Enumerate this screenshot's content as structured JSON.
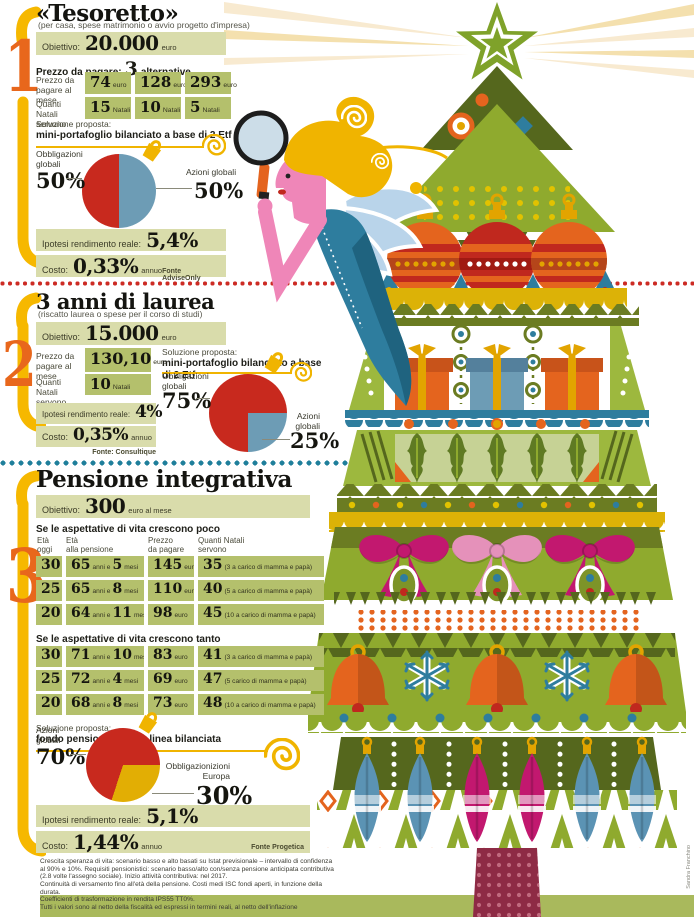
{
  "colors": {
    "cell_green": "#b4c06c",
    "bar_green": "#d9dcab",
    "accent_yellow": "#f0b400",
    "accent_orange": "#e8671c",
    "pie_red": "#c8291e",
    "pie_blue": "#6d9cb5",
    "pie_yellow": "#e2ae04",
    "dots_red": "#cc2b24",
    "dots_teal": "#1f7f9b",
    "tree_green": "#8faa2e",
    "ground_green": "#a9b95c"
  },
  "s1": {
    "number": "1",
    "title": "«Tesoretto»",
    "subtitle": "(per casa, spese matrimonio o avvio progetto d'impresa)",
    "objective_label": "Obiettivo:",
    "objective_value": "20.000",
    "objective_unit": "euro",
    "alt_label": "Prezzo da pagare:",
    "alt_big": "3",
    "alt_rest": "alternative",
    "monthly_label": "Prezzo da pagare al mese",
    "cells_month": [
      {
        "v": "74",
        "u": "euro"
      },
      {
        "v": "128",
        "u": "euro"
      },
      {
        "v": "293",
        "u": "euro"
      }
    ],
    "natali_label": "Quanti Natali servono",
    "cells_natali": [
      {
        "v": "15",
        "u": "Natali"
      },
      {
        "v": "10",
        "u": "Natali"
      },
      {
        "v": "5",
        "u": "Natali"
      }
    ],
    "sol_label": "Soluzione proposta:",
    "sol_value": "mini-portafoglio bilanciato a base di 2 Etf",
    "pie_left_label": "Obbligazioni globali",
    "pie_left_pct": "50%",
    "pie_right_label": "Azioni globali",
    "pie_right_pct": "50%",
    "yield_label": "Ipotesi rendimento reale:",
    "yield_value": "5,4%",
    "cost_label": "Costo:",
    "cost_value": "0,33%",
    "cost_unit": "annuo",
    "source": "Fonte AdviseOnly"
  },
  "s2": {
    "number": "2",
    "title": "3 anni di laurea",
    "subtitle": "(riscatto laurea o spese per il corso di studi)",
    "objective_label": "Obiettivo:",
    "objective_value": "15.000",
    "objective_unit": "euro",
    "monthly_label": "Prezzo da pagare al mese",
    "monthly_v": "130,10",
    "monthly_u": "euro",
    "natali_label": "Quanti Natali servono",
    "natali_v": "10",
    "natali_u": "Natali",
    "sol_label": "Soluzione proposta:",
    "sol_value": "mini-portafoglio bilanciato a base di 2 Etf",
    "pie_left_label": "Obbligazioni globali",
    "pie_left_pct": "75%",
    "pie_right_label": "Azioni globali",
    "pie_right_pct": "25%",
    "yield_label": "Ipotesi rendimento reale:",
    "yield_value": "4%",
    "cost_label": "Costo:",
    "cost_value": "0,35%",
    "cost_unit": "annuo",
    "source": "Fonte: Consultique"
  },
  "s3": {
    "number": "3",
    "title": "Pensione integrativa",
    "objective_label": "Obiettivo:",
    "objective_value": "300",
    "objective_unit": "euro al mese",
    "headers": [
      {
        "l1": "Età",
        "l2": "oggi"
      },
      {
        "l1": "Età",
        "l2": "alla pensione"
      },
      {
        "l1": "Prezzo",
        "l2": "da pagare"
      },
      {
        "l1": "Quanti Natali",
        "l2": "servono"
      }
    ],
    "t1_title": "Se le aspettative di vita crescono poco",
    "t1_rows": [
      {
        "age": "30",
        "y1": "65",
        "j1": "anni e",
        "y2": "5",
        "j2": "mesi",
        "price": "145",
        "pu": "euro",
        "nat": "35",
        "note": "(3 a carico di mamma e papà)"
      },
      {
        "age": "25",
        "y1": "65",
        "j1": "anni e",
        "y2": "8",
        "j2": "mesi",
        "price": "110",
        "pu": "euro",
        "nat": "40",
        "note": "(5 a carico di mamma e papà)"
      },
      {
        "age": "20",
        "y1": "64",
        "j1": "anni e",
        "y2": "11",
        "j2": "mesi",
        "price": "98",
        "pu": "euro",
        "nat": "45",
        "note": "(10 a carico di mamma e papà)"
      }
    ],
    "t2_title": "Se le aspettative di vita crescono tanto",
    "t2_rows": [
      {
        "age": "30",
        "y1": "71",
        "j1": "anni e",
        "y2": "10",
        "j2": "mesi",
        "price": "83",
        "pu": "euro",
        "nat": "41",
        "note": "(3 a carico di mamma e papà)"
      },
      {
        "age": "25",
        "y1": "72",
        "j1": "anni e",
        "y2": "4",
        "j2": "mesi",
        "price": "69",
        "pu": "euro",
        "nat": "47",
        "note": "(5 carico di mamma e papà)"
      },
      {
        "age": "20",
        "y1": "68",
        "j1": "anni e",
        "y2": "8",
        "j2": "mesi",
        "price": "73",
        "pu": "euro",
        "nat": "48",
        "note": "(10 a carico di mamma e papà)"
      }
    ],
    "sol_label": "Soluzione proposta:",
    "sol_value": "fondo pensione aperto, linea bilanciata",
    "pie_left_label": "Azioni globali",
    "pie_left_pct": "70%",
    "pie_right_label1": "Obbligazionizioni",
    "pie_right_label2": "Europa",
    "pie_right_pct": "30%",
    "yield_label": "Ipotesi rendimento reale:",
    "yield_value": "5,1%",
    "cost_label": "Costo:",
    "cost_value": "1,44%",
    "cost_unit": "annuo",
    "source": "Fonte Progetica"
  },
  "footnote": [
    "Crescita speranza di vita: scenario basso e alto basati su Istat previsionale – intervallo di confidenza",
    "al 90% e 10%.  Requisiti pensionistici: scenario basso/alto con/senza pensione anticipata contributiva",
    "(2.8 volte l'assegno sociale). Inizio attività contributiva: nel 2017.",
    "Continuità di versamento fino all'età della pensione. Costi medi ISC fondi aperti, in funzione della durata.",
    "Coefficienti di trasformazione in rendita IPS55 TT0%.",
    "Tutti i valori sono al netto della fiscalità ed espressi in termini reali, al netto dell'inflazione"
  ],
  "credit": "Sandra Franchino",
  "chart_data": [
    {
      "type": "pie",
      "title": "«Tesoretto» – mini-portafoglio bilanciato a base di 2 Etf",
      "labels": [
        "Obbligazioni globali",
        "Azioni globali"
      ],
      "values": [
        50,
        50
      ],
      "colors": [
        "#c8291e",
        "#6d9cb5"
      ],
      "segments": [
        {
          "color": "#6d9cb5",
          "from": 0,
          "to": 180
        },
        {
          "color": "#c8291e",
          "from": 180,
          "to": 360
        }
      ]
    },
    {
      "type": "pie",
      "title": "3 anni di laurea – mini-portafoglio bilanciato a base di 2 Etf",
      "labels": [
        "Obbligazioni globali",
        "Azioni globali"
      ],
      "values": [
        75,
        25
      ],
      "colors": [
        "#c8291e",
        "#6d9cb5"
      ],
      "segments": [
        {
          "color": "#c8291e",
          "from": 0,
          "to": 90
        },
        {
          "color": "#6d9cb5",
          "from": 90,
          "to": 180
        },
        {
          "color": "#c8291e",
          "from": 180,
          "to": 360
        }
      ]
    },
    {
      "type": "pie",
      "title": "Pensione integrativa – fondo pensione aperto, linea bilanciata",
      "labels": [
        "Azioni globali",
        "Obbligazionizioni Europa"
      ],
      "values": [
        70,
        30
      ],
      "colors": [
        "#c8291e",
        "#e2ae04"
      ],
      "segments": [
        {
          "color": "#c8291e",
          "from": 0,
          "to": 90
        },
        {
          "color": "#e2ae04",
          "from": 90,
          "to": 198
        },
        {
          "color": "#c8291e",
          "from": 198,
          "to": 360
        }
      ]
    },
    {
      "type": "table",
      "title": "Se le aspettative di vita crescono poco",
      "columns": [
        "Età oggi",
        "Età alla pensione",
        "Prezzo da pagare",
        "Quanti Natali servono"
      ],
      "rows": [
        [
          "30",
          "65 anni e 5 mesi",
          "145 euro",
          "35 (3 a carico di mamma e papà)"
        ],
        [
          "25",
          "65 anni e 8 mesi",
          "110 euro",
          "40 (5 a carico di mamma e papà)"
        ],
        [
          "20",
          "64 anni e 11 mesi",
          "98 euro",
          "45 (10 a carico di mamma e papà)"
        ]
      ]
    },
    {
      "type": "table",
      "title": "Se le aspettative di vita crescono tanto",
      "columns": [
        "Età oggi",
        "Età alla pensione",
        "Prezzo da pagare",
        "Quanti Natali servono"
      ],
      "rows": [
        [
          "30",
          "71 anni e 10 mesi",
          "83 euro",
          "41 (3 a carico di mamma e papà)"
        ],
        [
          "25",
          "72 anni e 4 mesi",
          "69 euro",
          "47 (5 carico di mamma e papà)"
        ],
        [
          "20",
          "68 anni e 8 mesi",
          "73 euro",
          "48 (10 a carico di mamma e papà)"
        ]
      ]
    }
  ]
}
